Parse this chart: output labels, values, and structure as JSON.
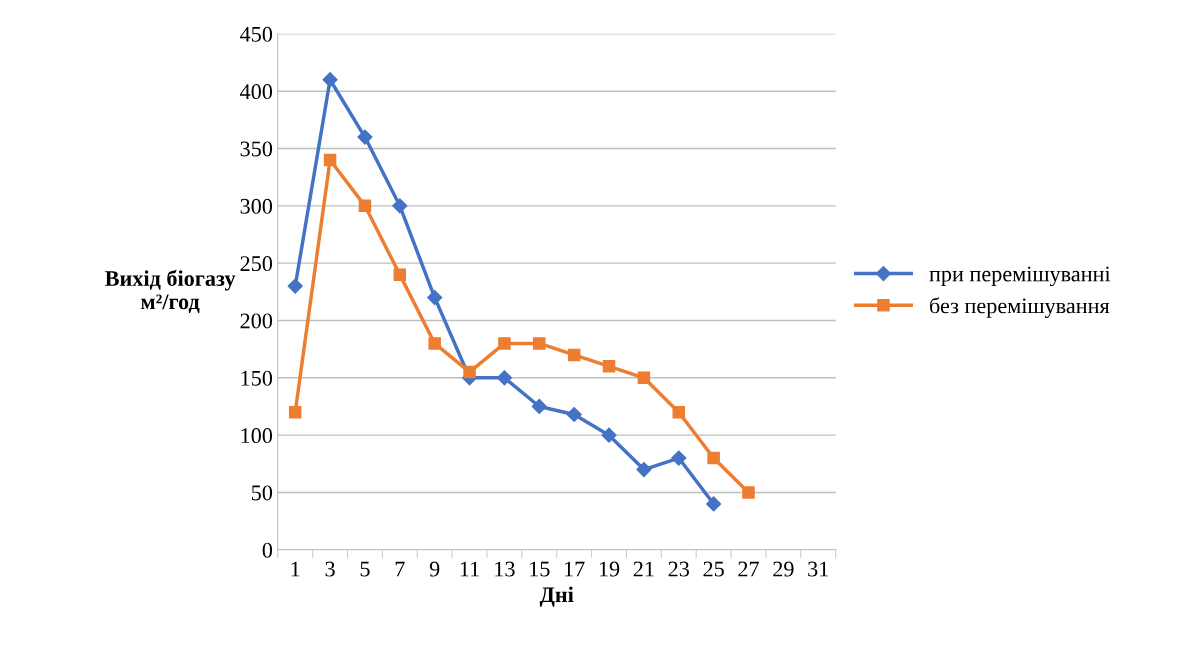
{
  "chart_data": {
    "type": "line",
    "xlabel": "Дні",
    "ylabel": "Вихід біогазу\nм²/год",
    "categories": [
      "1",
      "3",
      "5",
      "7",
      "9",
      "11",
      "13",
      "15",
      "17",
      "19",
      "21",
      "23",
      "25",
      "27",
      "29",
      "31"
    ],
    "series": [
      {
        "name": "при перемішуванні",
        "color": "#4472c4",
        "marker": "diamond",
        "values": [
          230,
          410,
          360,
          300,
          220,
          150,
          150,
          125,
          118,
          100,
          70,
          80,
          40,
          null,
          null,
          null
        ]
      },
      {
        "name": "без перемішування",
        "color": "#ed7d31",
        "marker": "square",
        "values": [
          120,
          340,
          300,
          240,
          180,
          155,
          180,
          180,
          170,
          160,
          150,
          120,
          80,
          50,
          null,
          null
        ]
      }
    ],
    "ylim": [
      0,
      450
    ],
    "yticks": [
      0,
      50,
      100,
      150,
      200,
      250,
      300,
      350,
      400,
      450
    ],
    "grid": "y",
    "legend": "right",
    "line_style": "solid"
  }
}
